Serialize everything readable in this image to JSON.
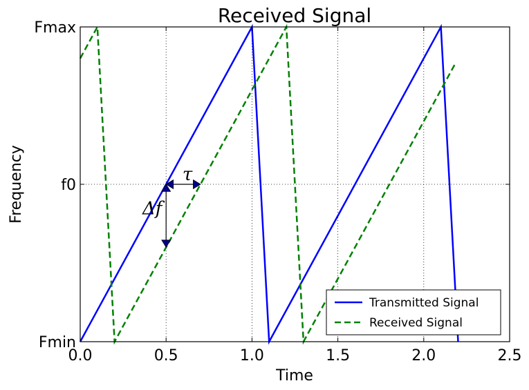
{
  "chart_data": {
    "type": "line",
    "title": "Received Signal",
    "xlabel": "Time",
    "ylabel": "Frequency",
    "xlim": [
      0.0,
      2.5
    ],
    "ylim": [
      0,
      1
    ],
    "x_ticks": [
      0.0,
      0.5,
      1.0,
      1.5,
      2.0,
      2.5
    ],
    "x_tick_labels": [
      "0.0",
      "0.5",
      "1.0",
      "1.5",
      "2.0",
      "2.5"
    ],
    "y_ticks": [
      0,
      0.5,
      1
    ],
    "y_tick_labels": [
      "Fmin",
      "f0",
      "Fmax"
    ],
    "grid": true,
    "legend_position": "lower-right",
    "series": [
      {
        "name": "Transmitted Signal",
        "color": "#0000ff",
        "style": "solid",
        "x": [
          0.0,
          1.0,
          1.1,
          2.1,
          2.2
        ],
        "y": [
          0.0,
          1.0,
          0.0,
          1.0,
          0.0
        ]
      },
      {
        "name": "Received Signal",
        "color": "#008000",
        "style": "dashed",
        "x": [
          0.0,
          0.1,
          0.2,
          1.2,
          1.3,
          2.18
        ],
        "y": [
          0.9,
          1.0,
          0.0,
          1.0,
          0.0,
          0.88
        ]
      }
    ],
    "annotations": [
      {
        "text": "τ",
        "kind": "horizontal-arrow",
        "x_from": 0.5,
        "x_to": 0.7,
        "y": 0.5
      },
      {
        "text": "Δf",
        "kind": "vertical-arrow",
        "x": 0.5,
        "y_from": 0.5,
        "y_to": 0.3
      }
    ]
  }
}
